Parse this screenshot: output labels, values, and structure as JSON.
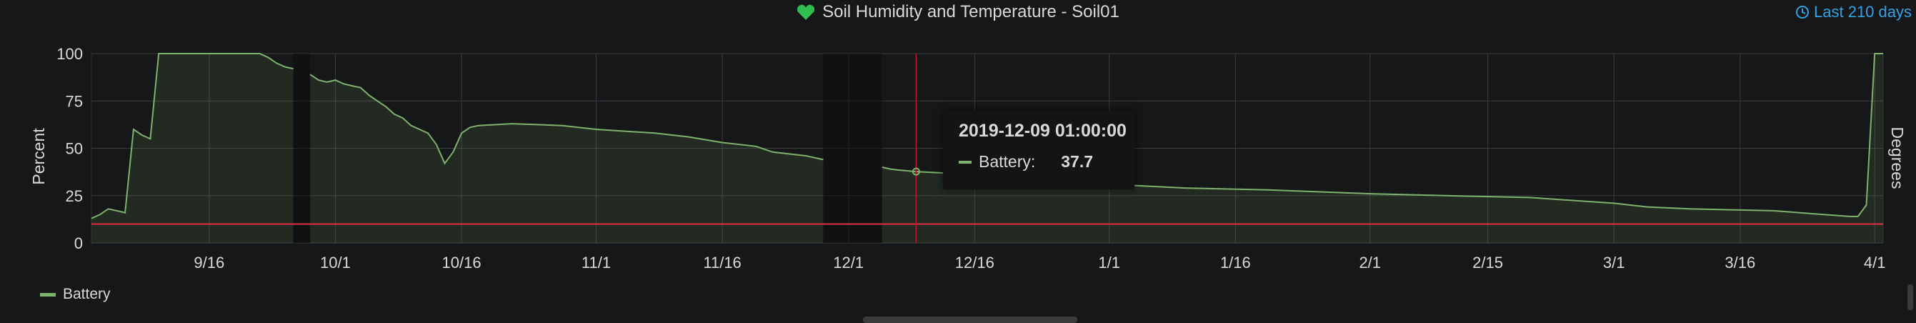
{
  "panel": {
    "title": "Soil Humidity and Temperature - Soil01",
    "time_range": "Last 210 days",
    "title_icon": "heart-icon",
    "time_icon": "clock-icon"
  },
  "tooltip": {
    "time": "2019-12-09 01:00:00",
    "series": "Battery:",
    "value": "37.7"
  },
  "legend": {
    "items": [
      {
        "name": "Battery",
        "color": "#7eb26d"
      }
    ]
  },
  "chart_data": {
    "type": "line",
    "title": "Soil Humidity and Temperature - Soil01",
    "ylabel": "Percent",
    "y2label": "Degrees",
    "ylim": [
      0,
      100
    ],
    "y_ticks": [
      "0",
      "25",
      "50",
      "75",
      "100"
    ],
    "x_range": [
      "2019-09-02",
      "2020-04-02"
    ],
    "x_ticks": [
      {
        "date": "2019-09-16",
        "label": "9/16"
      },
      {
        "date": "2019-10-01",
        "label": "10/1"
      },
      {
        "date": "2019-10-16",
        "label": "10/16"
      },
      {
        "date": "2019-11-01",
        "label": "11/1"
      },
      {
        "date": "2019-11-16",
        "label": "11/16"
      },
      {
        "date": "2019-12-01",
        "label": "12/1"
      },
      {
        "date": "2019-12-16",
        "label": "12/16"
      },
      {
        "date": "2020-01-01",
        "label": "1/1"
      },
      {
        "date": "2020-01-16",
        "label": "1/16"
      },
      {
        "date": "2020-02-01",
        "label": "2/1"
      },
      {
        "date": "2020-02-15",
        "label": "2/15"
      },
      {
        "date": "2020-03-01",
        "label": "3/1"
      },
      {
        "date": "2020-03-16",
        "label": "3/16"
      },
      {
        "date": "2020-04-01",
        "label": "4/1"
      }
    ],
    "threshold": {
      "value": 10,
      "color": "#e02f44"
    },
    "crosshair": {
      "date": "2019-12-09T01:00:00"
    },
    "grid": true,
    "legend_position": "bottom-left",
    "series": [
      {
        "name": "Battery",
        "color": "#7eb26d",
        "segments": [
          [
            [
              "2019-09-02",
              13
            ],
            [
              "2019-09-03",
              15
            ],
            [
              "2019-09-04",
              18
            ],
            [
              "2019-09-05",
              17
            ],
            [
              "2019-09-06",
              16
            ],
            [
              "2019-09-07",
              60
            ],
            [
              "2019-09-08",
              57
            ],
            [
              "2019-09-09",
              55
            ],
            [
              "2019-09-10",
              100
            ],
            [
              "2019-09-22",
              100
            ],
            [
              "2019-09-23",
              98
            ],
            [
              "2019-09-24",
              95
            ],
            [
              "2019-09-25",
              93
            ],
            [
              "2019-09-26",
              92
            ]
          ],
          [
            [
              "2019-09-28",
              89
            ],
            [
              "2019-09-29",
              86
            ],
            [
              "2019-09-30",
              85
            ],
            [
              "2019-10-01",
              86
            ],
            [
              "2019-10-02",
              84
            ],
            [
              "2019-10-03",
              83
            ],
            [
              "2019-10-04",
              82
            ],
            [
              "2019-10-05",
              78
            ],
            [
              "2019-10-06",
              75
            ],
            [
              "2019-10-07",
              72
            ],
            [
              "2019-10-08",
              68
            ],
            [
              "2019-10-09",
              66
            ],
            [
              "2019-10-10",
              62
            ],
            [
              "2019-10-11",
              60
            ],
            [
              "2019-10-12",
              58
            ],
            [
              "2019-10-13",
              52
            ],
            [
              "2019-10-14",
              42
            ],
            [
              "2019-10-15",
              48
            ],
            [
              "2019-10-16",
              58
            ],
            [
              "2019-10-17",
              61
            ],
            [
              "2019-10-18",
              62
            ],
            [
              "2019-10-22",
              63
            ],
            [
              "2019-10-28",
              62
            ],
            [
              "2019-11-01",
              60
            ],
            [
              "2019-11-08",
              58
            ],
            [
              "2019-11-12",
              56
            ],
            [
              "2019-11-16",
              53
            ],
            [
              "2019-11-20",
              51
            ],
            [
              "2019-11-22",
              48
            ],
            [
              "2019-11-26",
              46
            ],
            [
              "2019-11-28",
              44
            ]
          ],
          [
            [
              "2019-12-05",
              40
            ],
            [
              "2019-12-06",
              39
            ],
            [
              "2019-12-07",
              38.5
            ],
            [
              "2019-12-09",
              37.7
            ],
            [
              "2019-12-12",
              37
            ],
            [
              "2019-12-18",
              36
            ],
            [
              "2019-12-25",
              33
            ],
            [
              "2020-01-01",
              31
            ],
            [
              "2020-01-10",
              29
            ],
            [
              "2020-01-20",
              28
            ],
            [
              "2020-02-01",
              26
            ],
            [
              "2020-02-10",
              25
            ],
            [
              "2020-02-20",
              24
            ],
            [
              "2020-03-01",
              21
            ],
            [
              "2020-03-05",
              19
            ],
            [
              "2020-03-10",
              18
            ],
            [
              "2020-03-20",
              17
            ],
            [
              "2020-03-26",
              15
            ],
            [
              "2020-03-29",
              14
            ],
            [
              "2020-03-30",
              14
            ],
            [
              "2020-03-31",
              20
            ],
            [
              "2020-04-01",
              100
            ],
            [
              "2020-04-02",
              100
            ]
          ]
        ]
      }
    ]
  }
}
